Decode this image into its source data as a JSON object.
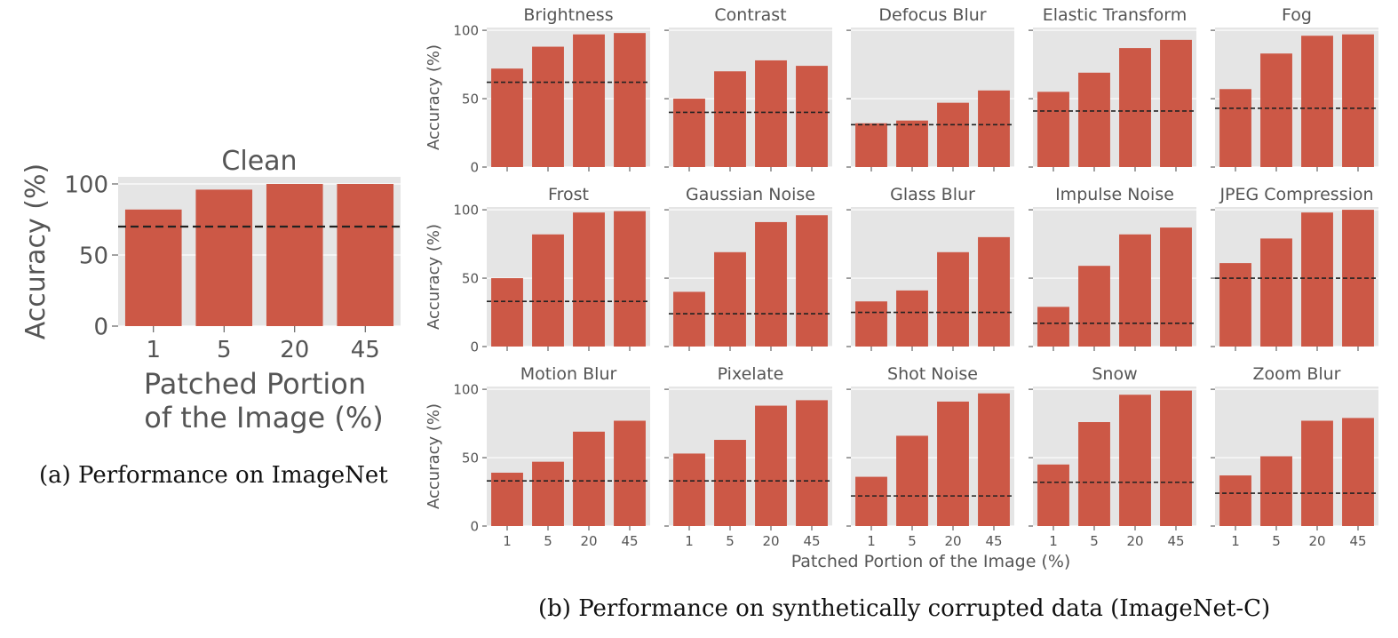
{
  "captions": {
    "a": "(a) Performance on ImageNet",
    "b": "(b) Performance on synthetically corrupted data (ImageNet-C)"
  },
  "colors": {
    "bar": "#cc5846",
    "panel_bg": "#e5e5e5",
    "grid": "#ffffff",
    "baseline": "#222222",
    "text": "#555555"
  },
  "chart_data": [
    {
      "type": "bar",
      "title": "Clean",
      "xlabel": "Patched Portion of the Image (%)",
      "ylabel": "Accuracy (%)",
      "categories": [
        "1",
        "5",
        "20",
        "45"
      ],
      "values": [
        82,
        96,
        100,
        100
      ],
      "baseline": 70,
      "ylim": [
        0,
        105
      ],
      "yticks": [
        0,
        50,
        100
      ],
      "grid": true
    },
    {
      "type": "bar",
      "title": "",
      "xlabel": "Patched Portion of the Image (%)",
      "ylabel": "Accuracy (%)",
      "categories": [
        "1",
        "5",
        "20",
        "45"
      ],
      "ylim": [
        0,
        102
      ],
      "yticks": [
        0,
        50,
        100
      ],
      "grid": true,
      "panels": [
        {
          "title": "Brightness",
          "values": [
            72,
            88,
            97,
            98
          ],
          "baseline": 62
        },
        {
          "title": "Contrast",
          "values": [
            50,
            70,
            78,
            74
          ],
          "baseline": 40
        },
        {
          "title": "Defocus Blur",
          "values": [
            32,
            34,
            47,
            56
          ],
          "baseline": 31
        },
        {
          "title": "Elastic Transform",
          "values": [
            55,
            69,
            87,
            93
          ],
          "baseline": 41
        },
        {
          "title": "Fog",
          "values": [
            57,
            83,
            96,
            97
          ],
          "baseline": 43
        },
        {
          "title": "Frost",
          "values": [
            50,
            82,
            98,
            99
          ],
          "baseline": 33
        },
        {
          "title": "Gaussian Noise",
          "values": [
            40,
            69,
            91,
            96
          ],
          "baseline": 24
        },
        {
          "title": "Glass Blur",
          "values": [
            33,
            41,
            69,
            80
          ],
          "baseline": 25
        },
        {
          "title": "Impulse Noise",
          "values": [
            29,
            59,
            82,
            87
          ],
          "baseline": 17
        },
        {
          "title": "JPEG Compression",
          "values": [
            61,
            79,
            98,
            100
          ],
          "baseline": 50
        },
        {
          "title": "Motion Blur",
          "values": [
            39,
            47,
            69,
            77
          ],
          "baseline": 33
        },
        {
          "title": "Pixelate",
          "values": [
            53,
            63,
            88,
            92
          ],
          "baseline": 33
        },
        {
          "title": "Shot Noise",
          "values": [
            36,
            66,
            91,
            97
          ],
          "baseline": 22
        },
        {
          "title": "Snow",
          "values": [
            45,
            76,
            96,
            99
          ],
          "baseline": 32
        },
        {
          "title": "Zoom Blur",
          "values": [
            37,
            51,
            77,
            79
          ],
          "baseline": 24
        }
      ]
    }
  ]
}
